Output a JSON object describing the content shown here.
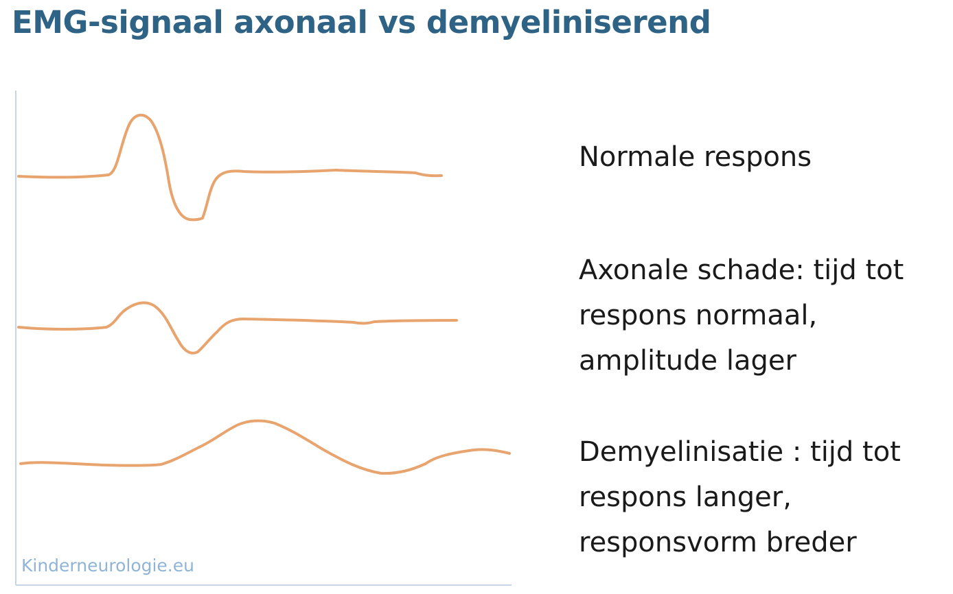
{
  "title": "EMG-signaal axonaal vs demyeliniserend",
  "traces": [
    {
      "id": "normal",
      "color": "#e8a46e",
      "label_lines": [
        "Normale respons"
      ]
    },
    {
      "id": "axonal",
      "color": "#e8a46e",
      "label_lines": [
        "Axonale schade: tijd tot",
        "respons normaal,",
        "amplitude lager"
      ]
    },
    {
      "id": "demyelination",
      "color": "#e8a46e",
      "label_lines": [
        "Demyelinisatie : tijd tot",
        "respons langer,",
        "responsvorm breder"
      ]
    }
  ],
  "axis_color": "#c9d3e6",
  "watermark": "Kinderneurologie.eu"
}
